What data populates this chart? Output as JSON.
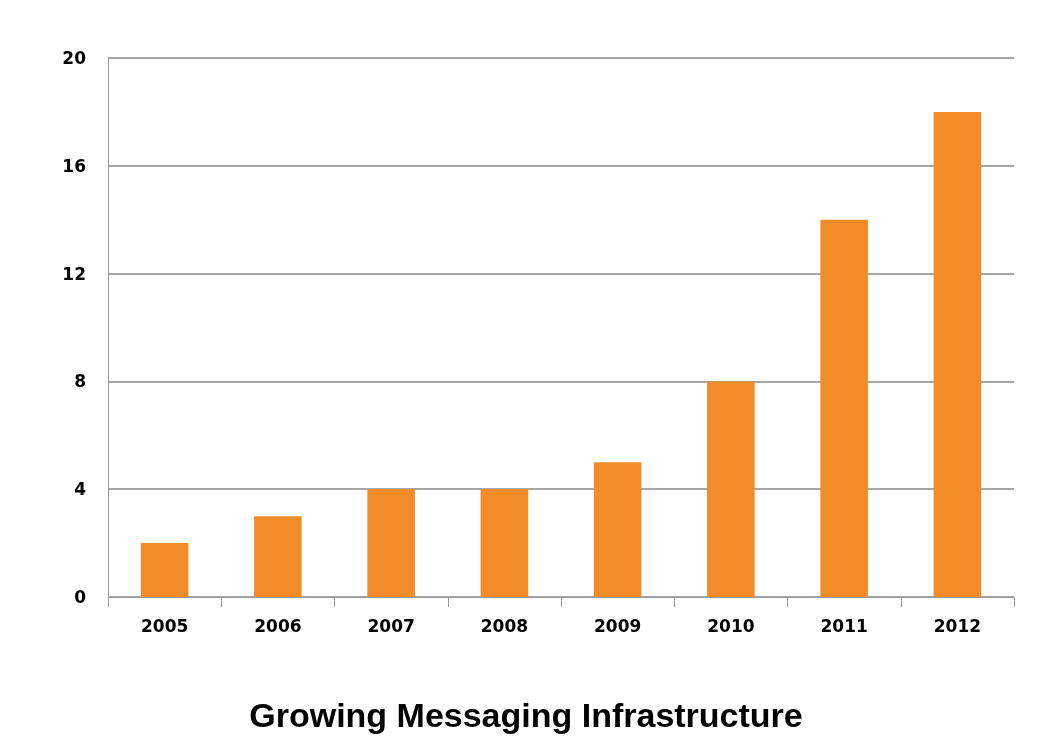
{
  "chart_data": {
    "type": "bar",
    "title": "Growing Messaging Infrastructure",
    "categories": [
      "2005",
      "2006",
      "2007",
      "2008",
      "2009",
      "2010",
      "2011",
      "2012"
    ],
    "values": [
      2,
      3,
      4,
      4,
      5,
      8,
      14,
      18
    ],
    "color": "#f28c28",
    "ylim": [
      0,
      20
    ],
    "yticks": [
      0,
      4,
      8,
      12,
      16,
      20
    ],
    "grid": "y"
  }
}
